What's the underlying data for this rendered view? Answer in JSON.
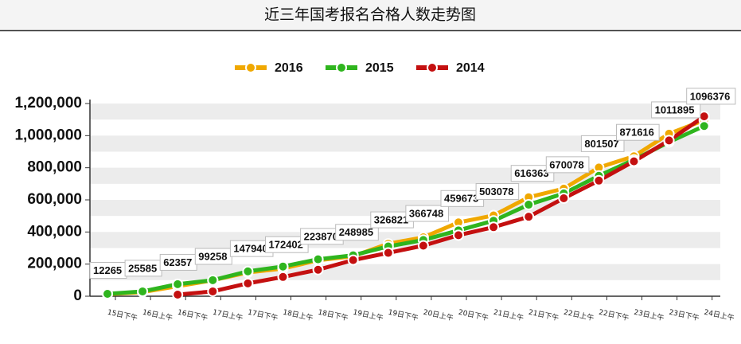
{
  "chart_data": {
    "type": "line",
    "title": "近三年国考报名合格人数走势图",
    "categories": [
      "15日下午",
      "16日上午",
      "16日下午",
      "17日上午",
      "17日下午",
      "18日上午",
      "18日下午",
      "19日上午",
      "19日下午",
      "20日上午",
      "20日下午",
      "21日上午",
      "21日下午",
      "22日上午",
      "22日下午",
      "23日上午",
      "23日下午",
      "24日上午"
    ],
    "series": [
      {
        "name": "2016",
        "color": "#f0a800",
        "values": [
          12265,
          25585,
          62357,
          99258,
          147940,
          172402,
          223870,
          248985,
          326821,
          366748,
          459673,
          503078,
          616363,
          670078,
          801507,
          871616,
          1011895,
          1096376
        ]
      },
      {
        "name": "2015",
        "color": "#2fb51e",
        "values": [
          15000,
          30000,
          75000,
          100000,
          155000,
          185000,
          230000,
          255000,
          310000,
          350000,
          410000,
          470000,
          570000,
          640000,
          750000,
          850000,
          960000,
          1060000
        ]
      },
      {
        "name": "2014",
        "color": "#c41010",
        "values": [
          null,
          null,
          10000,
          30000,
          80000,
          120000,
          165000,
          225000,
          270000,
          315000,
          380000,
          430000,
          495000,
          610000,
          720000,
          840000,
          970000,
          1120000
        ]
      }
    ],
    "ylim": [
      0,
      1200000
    ],
    "yticks": [
      0,
      {
        "value": 200000,
        "label": "200,000"
      },
      {
        "value": 400000,
        "label": "400,000"
      },
      {
        "value": 600000,
        "label": "600,000"
      },
      {
        "value": 800000,
        "label": "800,000"
      },
      {
        "value": 1000000,
        "label": "1,000,000"
      },
      {
        "value": 1200000,
        "label": "1,200,000"
      }
    ],
    "grid": true,
    "legend": "top"
  }
}
